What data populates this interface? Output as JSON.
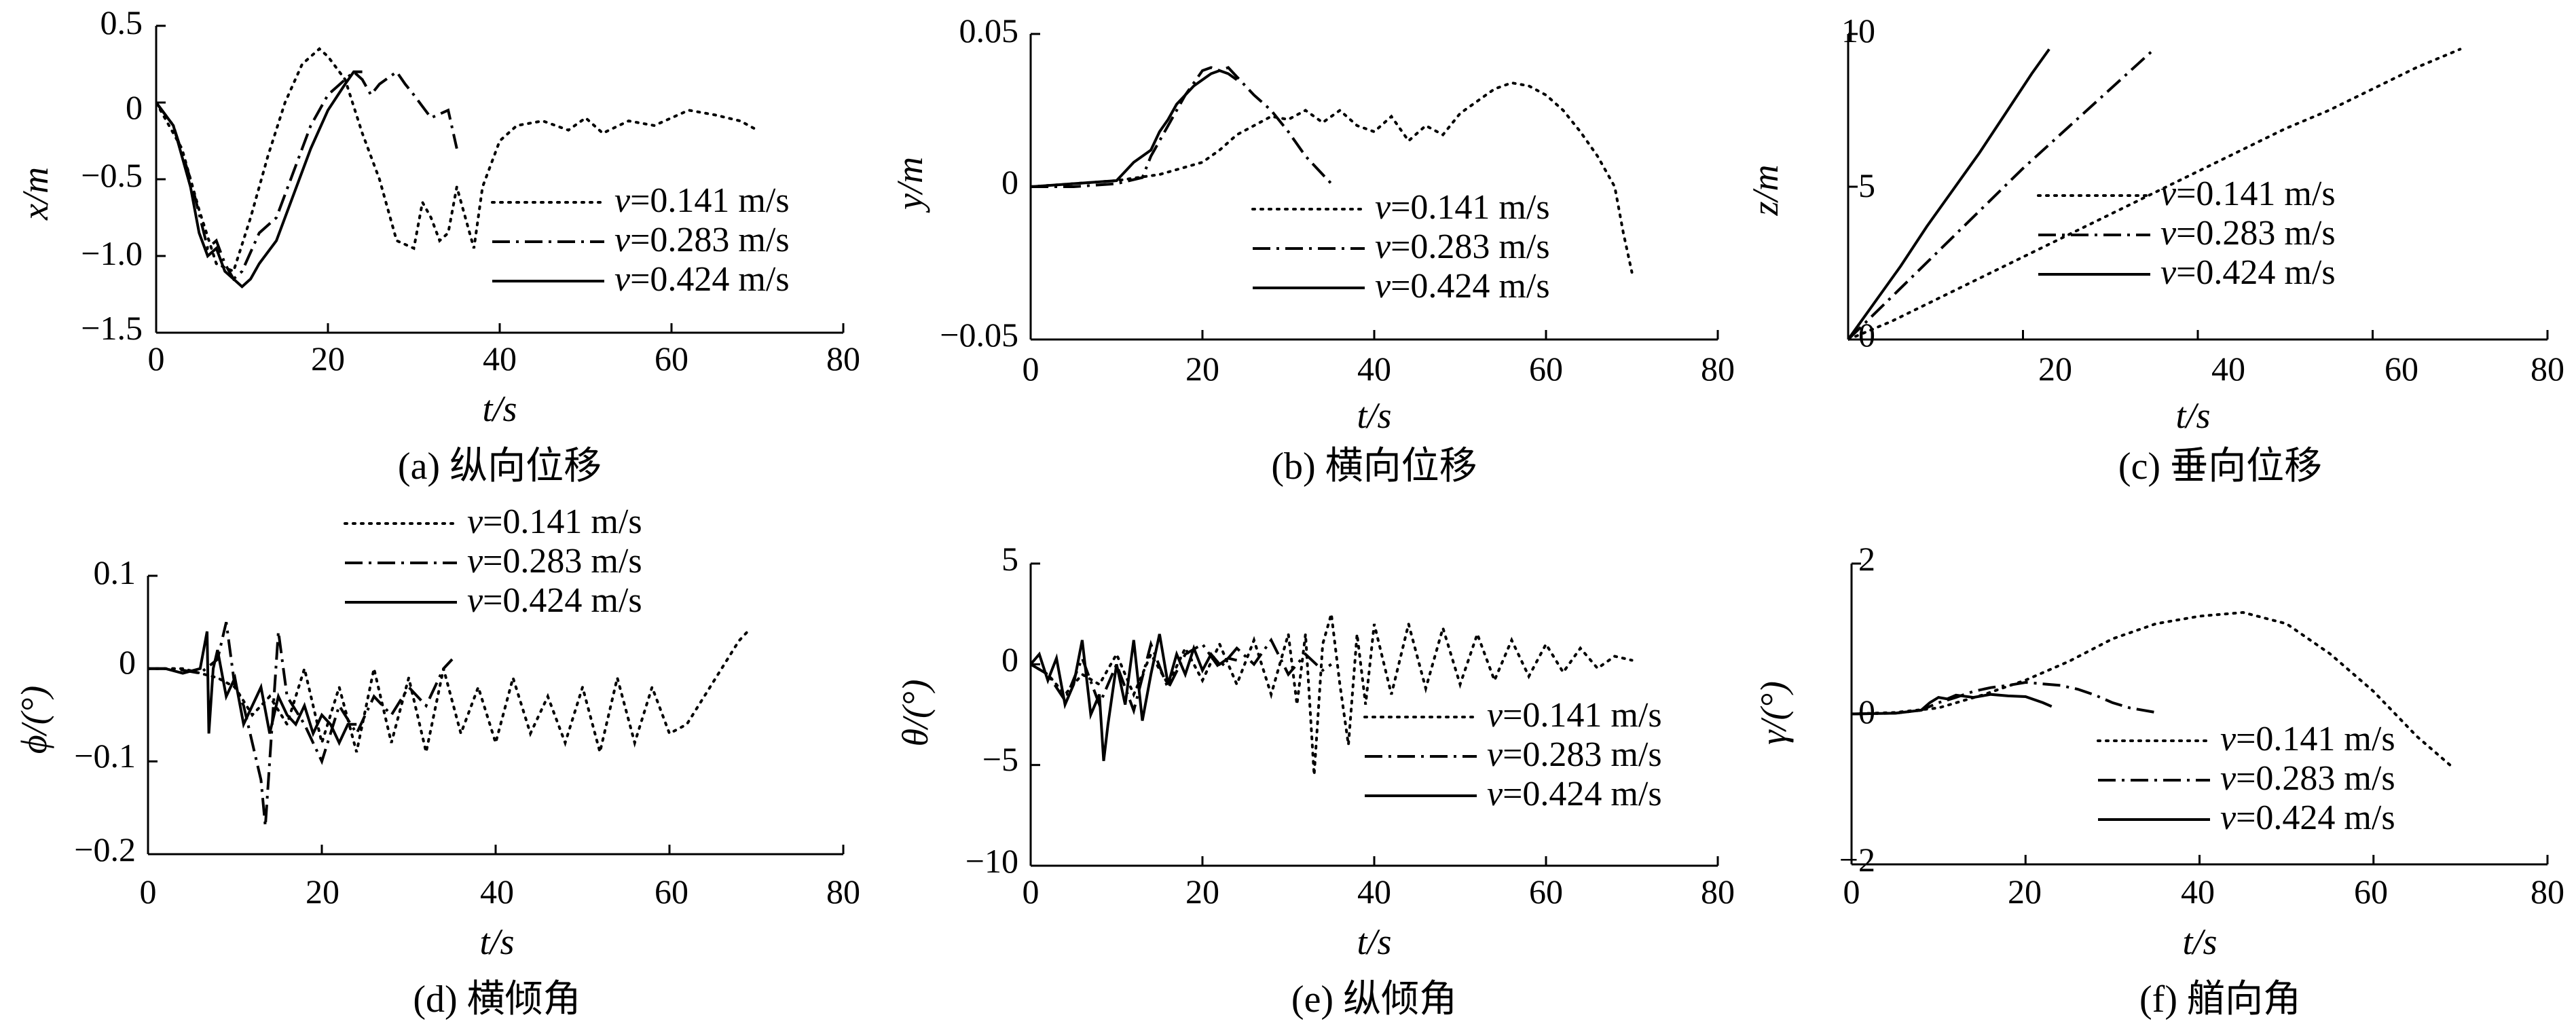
{
  "legend": [
    "v=0.141 m/s",
    "v=0.283 m/s",
    "v=0.424 m/s"
  ],
  "chart_data": [
    {
      "id": "a",
      "type": "line",
      "caption": "(a) 纵向位移",
      "xlabel": "t/s",
      "ylabel": "x/m",
      "xlim": [
        0,
        80
      ],
      "ylim": [
        -1.5,
        0.5
      ],
      "xticks": [
        0,
        20,
        40,
        60,
        80
      ],
      "xtick_labels": [
        "0",
        "20",
        "40",
        "60",
        "80"
      ],
      "yticks": [
        0.5,
        0,
        -0.5,
        -1.0,
        -1.5
      ],
      "ytick_labels": [
        "0.5",
        "0",
        "−0.5",
        "−1.0",
        "−1.5"
      ],
      "legend_position": "inside-lower-right",
      "series": [
        {
          "name": "v=0.141 m/s",
          "style": "dotted",
          "x": [
            0,
            3,
            5,
            7,
            9,
            11,
            13,
            15,
            17,
            19,
            20,
            22,
            24,
            26,
            28,
            30,
            31,
            32,
            33,
            34,
            35,
            36,
            37,
            38,
            40,
            42,
            45,
            48,
            50,
            52,
            55,
            58,
            60,
            62,
            65,
            68,
            70
          ],
          "y": [
            0,
            -0.3,
            -0.7,
            -1.05,
            -1.1,
            -0.75,
            -0.35,
            0,
            0.25,
            0.35,
            0.3,
            0.15,
            -0.2,
            -0.5,
            -0.9,
            -0.95,
            -0.65,
            -0.75,
            -0.9,
            -0.85,
            -0.55,
            -0.75,
            -0.95,
            -0.55,
            -0.25,
            -0.15,
            -0.12,
            -0.18,
            -0.1,
            -0.2,
            -0.12,
            -0.15,
            -0.1,
            -0.05,
            -0.08,
            -0.12,
            -0.18
          ]
        },
        {
          "name": "v=0.283 m/s",
          "style": "dashdot",
          "x": [
            0,
            2,
            4,
            6,
            7,
            8,
            9,
            10,
            12,
            14,
            16,
            18,
            20,
            22,
            23,
            24,
            25,
            26,
            28,
            29,
            30,
            32,
            34,
            35
          ],
          "y": [
            0,
            -0.15,
            -0.5,
            -0.95,
            -0.9,
            -1.05,
            -1.15,
            -1.1,
            -0.85,
            -0.75,
            -0.45,
            -0.15,
            0.05,
            0.15,
            0.2,
            0.15,
            0.05,
            0.12,
            0.2,
            0.12,
            0.05,
            -0.1,
            -0.05,
            -0.3
          ]
        },
        {
          "name": "v=0.424 m/s",
          "style": "solid",
          "x": [
            0,
            2,
            4,
            5,
            6,
            7,
            8,
            9,
            10,
            11,
            12,
            14,
            16,
            18,
            20,
            22,
            23,
            24
          ],
          "y": [
            0,
            -0.15,
            -0.55,
            -0.85,
            -1.0,
            -0.95,
            -1.1,
            -1.15,
            -1.2,
            -1.15,
            -1.05,
            -0.9,
            -0.6,
            -0.3,
            -0.05,
            0.12,
            0.2,
            0.2
          ]
        }
      ]
    },
    {
      "id": "b",
      "type": "line",
      "caption": "(b) 横向位移",
      "xlabel": "t/s",
      "ylabel": "y/m",
      "xlim": [
        0,
        80
      ],
      "ylim": [
        -0.05,
        0.05
      ],
      "xticks": [
        0,
        20,
        40,
        60,
        80
      ],
      "xtick_labels": [
        "0",
        "20",
        "40",
        "60",
        "80"
      ],
      "yticks": [
        0.05,
        0,
        -0.05
      ],
      "ytick_labels": [
        "0.05",
        "0",
        "−0.05"
      ],
      "legend_position": "inside-lower-right",
      "series": [
        {
          "name": "v=0.141 m/s",
          "style": "dotted",
          "x": [
            0,
            5,
            10,
            15,
            20,
            22,
            24,
            26,
            28,
            30,
            32,
            34,
            36,
            38,
            40,
            42,
            44,
            46,
            48,
            50,
            52,
            54,
            56,
            58,
            60,
            62,
            64,
            66,
            68,
            69,
            70
          ],
          "y": [
            0,
            0.001,
            0.002,
            0.004,
            0.008,
            0.012,
            0.017,
            0.02,
            0.023,
            0.022,
            0.025,
            0.021,
            0.025,
            0.02,
            0.018,
            0.023,
            0.015,
            0.02,
            0.017,
            0.024,
            0.028,
            0.032,
            0.034,
            0.033,
            0.03,
            0.025,
            0.018,
            0.01,
            0.0,
            -0.015,
            -0.028
          ]
        },
        {
          "name": "v=0.283 m/s",
          "style": "dashdot",
          "x": [
            0,
            5,
            10,
            13,
            14,
            16,
            18,
            20,
            21,
            22,
            23,
            24,
            26,
            28,
            30,
            32,
            34,
            35
          ],
          "y": [
            0,
            0,
            0.001,
            0.003,
            0.01,
            0.02,
            0.03,
            0.038,
            0.039,
            0.038,
            0.039,
            0.036,
            0.03,
            0.025,
            0.018,
            0.01,
            0.004,
            0.001
          ]
        },
        {
          "name": "v=0.424 m/s",
          "style": "solid",
          "x": [
            0,
            5,
            10,
            11,
            12,
            13,
            14,
            15,
            16,
            17,
            18,
            19,
            20,
            21,
            22,
            23,
            24
          ],
          "y": [
            0,
            0.001,
            0.002,
            0.005,
            0.008,
            0.01,
            0.012,
            0.018,
            0.022,
            0.027,
            0.03,
            0.033,
            0.035,
            0.037,
            0.038,
            0.037,
            0.035
          ]
        }
      ]
    },
    {
      "id": "c",
      "type": "line",
      "caption": "(c) 垂向位移",
      "xlabel": "t/s",
      "ylabel": "z/m",
      "xlim": [
        0,
        80
      ],
      "ylim": [
        0,
        10
      ],
      "xticks": [
        20,
        40,
        60,
        80
      ],
      "xtick_labels": [
        "20",
        "40",
        "60",
        "80"
      ],
      "yticks": [
        10,
        5,
        0
      ],
      "ytick_labels": [
        "10",
        "5",
        "0"
      ],
      "legend_position": "inside-lower-right",
      "series": [
        {
          "name": "v=0.141 m/s",
          "style": "dotted",
          "x": [
            0,
            5,
            10,
            15,
            20,
            25,
            30,
            35,
            40,
            45,
            50,
            55,
            60,
            65,
            70
          ],
          "y": [
            0,
            0.6,
            1.3,
            2.0,
            2.7,
            3.4,
            4.1,
            4.8,
            5.5,
            6.2,
            6.9,
            7.5,
            8.2,
            8.9,
            9.5
          ]
        },
        {
          "name": "v=0.283 m/s",
          "style": "dashdot",
          "x": [
            0,
            5,
            10,
            15,
            20,
            25,
            30,
            35
          ],
          "y": [
            0,
            1.4,
            2.8,
            4.2,
            5.6,
            6.9,
            8.2,
            9.5
          ]
        },
        {
          "name": "v=0.424 m/s",
          "style": "solid",
          "x": [
            0,
            3,
            6,
            9,
            12,
            15,
            18,
            21,
            23
          ],
          "y": [
            0,
            1.2,
            2.4,
            3.7,
            4.9,
            6.1,
            7.4,
            8.7,
            9.5
          ]
        }
      ]
    },
    {
      "id": "d",
      "type": "line",
      "caption": "(d) 横倾角",
      "xlabel": "t/s",
      "ylabel": "ϕ/(°)",
      "xlim": [
        0,
        80
      ],
      "ylim": [
        -0.2,
        0.1
      ],
      "xticks": [
        0,
        20,
        40,
        60,
        80
      ],
      "xtick_labels": [
        "0",
        "20",
        "40",
        "60",
        "80"
      ],
      "yticks": [
        0.1,
        0,
        -0.1,
        -0.2
      ],
      "ytick_labels": [
        "0.1",
        "0",
        "−0.1",
        "−0.2"
      ],
      "legend_position": "top-center",
      "series": [
        {
          "name": "v=0.141 m/s",
          "style": "dotted",
          "x": [
            0,
            4,
            8,
            10,
            12,
            14,
            16,
            18,
            20,
            22,
            24,
            26,
            28,
            30,
            32,
            34,
            36,
            38,
            40,
            42,
            44,
            46,
            48,
            50,
            52,
            54,
            56,
            58,
            60,
            62,
            64,
            66,
            68,
            69
          ],
          "y": [
            0,
            0,
            -0.01,
            -0.02,
            -0.05,
            -0.03,
            -0.06,
            0.0,
            -0.08,
            -0.02,
            -0.09,
            0.0,
            -0.08,
            -0.01,
            -0.09,
            0.0,
            -0.07,
            -0.02,
            -0.08,
            -0.01,
            -0.07,
            -0.03,
            -0.08,
            -0.02,
            -0.09,
            -0.01,
            -0.08,
            -0.02,
            -0.07,
            -0.06,
            -0.03,
            0.0,
            0.03,
            0.04
          ]
        },
        {
          "name": "v=0.283 m/s",
          "style": "dashdot",
          "x": [
            0,
            3,
            6,
            8,
            9,
            10,
            11,
            12,
            13,
            13.5,
            14,
            15,
            16,
            18,
            20,
            22,
            24,
            26,
            28,
            30,
            32,
            34,
            35
          ],
          "y": [
            0,
            0,
            -0.005,
            0.01,
            0.05,
            -0.02,
            -0.04,
            -0.08,
            -0.12,
            -0.17,
            -0.1,
            0.04,
            -0.03,
            -0.06,
            -0.1,
            -0.04,
            -0.07,
            -0.03,
            -0.05,
            -0.02,
            -0.04,
            0.0,
            0.01
          ]
        },
        {
          "name": "v=0.424 m/s",
          "style": "solid",
          "x": [
            0,
            2,
            4,
            6,
            6.8,
            7,
            7.5,
            8,
            9,
            10,
            11,
            12,
            13,
            14,
            15,
            16,
            17,
            18,
            19,
            20,
            21,
            22,
            23,
            24
          ],
          "y": [
            0,
            0.0,
            -0.005,
            0.0,
            0.04,
            -0.07,
            0.0,
            0.02,
            -0.03,
            -0.01,
            -0.06,
            -0.04,
            -0.02,
            -0.07,
            -0.03,
            -0.05,
            -0.06,
            -0.04,
            -0.07,
            -0.05,
            -0.06,
            -0.08,
            -0.06,
            -0.06
          ]
        }
      ]
    },
    {
      "id": "e",
      "type": "line",
      "caption": "(e) 纵倾角",
      "xlabel": "t/s",
      "ylabel": "θ/(°)",
      "xlim": [
        0,
        80
      ],
      "ylim": [
        -10,
        5
      ],
      "xticks": [
        0,
        20,
        40,
        60,
        80
      ],
      "xtick_labels": [
        "0",
        "20",
        "40",
        "60",
        "80"
      ],
      "yticks": [
        5,
        0,
        -5,
        -10
      ],
      "ytick_labels": [
        "5",
        "0",
        "−5",
        "−10"
      ],
      "legend_position": "inside-lower-right",
      "series": [
        {
          "name": "v=0.141 m/s",
          "style": "dotted",
          "x": [
            0,
            2,
            4,
            6,
            8,
            10,
            12,
            14,
            16,
            18,
            20,
            22,
            24,
            26,
            28,
            30,
            31,
            32,
            33,
            34,
            35,
            36,
            37,
            38,
            39,
            40,
            42,
            44,
            46,
            48,
            50,
            52,
            54,
            56,
            58,
            60,
            62,
            64,
            66,
            68,
            70
          ],
          "y": [
            0,
            -0.5,
            -1.5,
            -0.5,
            -1.0,
            0.5,
            -1.5,
            0.5,
            -1.0,
            0.8,
            -0.8,
            1.0,
            -1.0,
            1.2,
            -1.5,
            1.5,
            -2.0,
            1.5,
            -5.5,
            1.0,
            2.5,
            -1.0,
            -4.0,
            1.5,
            -2.0,
            2.0,
            -1.5,
            2.0,
            -1.2,
            1.8,
            -1.0,
            1.5,
            -0.8,
            1.2,
            -0.6,
            1.0,
            -0.4,
            0.8,
            -0.2,
            0.4,
            0.2
          ]
        },
        {
          "name": "v=0.283 m/s",
          "style": "dashdot",
          "x": [
            0,
            2,
            4,
            6,
            8,
            10,
            12,
            14,
            16,
            18,
            20,
            22,
            24,
            26,
            28,
            30,
            32,
            34,
            35
          ],
          "y": [
            0,
            -0.5,
            -1.8,
            0.3,
            -2.0,
            0.0,
            -2.3,
            1.0,
            -1.2,
            0.5,
            1.0,
            -0.2,
            0.8,
            0.0,
            1.2,
            -0.5,
            0.5,
            -0.3,
            0.0
          ]
        },
        {
          "name": "v=0.424 m/s",
          "style": "solid",
          "x": [
            0,
            1,
            2,
            3,
            4,
            5,
            6,
            7,
            8,
            8.5,
            9,
            10,
            11,
            12,
            13,
            14,
            15,
            16,
            17,
            18,
            19,
            20,
            21,
            22,
            23,
            24
          ],
          "y": [
            0,
            0.5,
            -0.8,
            0.3,
            -2.0,
            -1.0,
            1.2,
            -2.5,
            -1.5,
            -4.8,
            -3.0,
            0.0,
            -2.0,
            1.2,
            -2.8,
            -0.5,
            1.5,
            -1.0,
            0.5,
            -0.5,
            0.8,
            -0.3,
            0.5,
            0.0,
            0.3,
            0.2
          ]
        }
      ]
    },
    {
      "id": "f",
      "type": "line",
      "caption": "(f) 艏向角",
      "xlabel": "t/s",
      "ylabel": "γ/(°)",
      "xlim": [
        0,
        80
      ],
      "ylim": [
        -2,
        2
      ],
      "xticks": [
        0,
        20,
        40,
        60,
        80
      ],
      "xtick_labels": [
        "0",
        "20",
        "40",
        "60",
        "80"
      ],
      "yticks": [
        2,
        0,
        -2
      ],
      "ytick_labels": [
        "2",
        "0",
        "−2"
      ],
      "legend_position": "inside-lower-right",
      "series": [
        {
          "name": "v=0.141 m/s",
          "style": "dotted",
          "x": [
            0,
            5,
            10,
            15,
            20,
            25,
            30,
            35,
            40,
            45,
            50,
            55,
            60,
            65,
            69
          ],
          "y": [
            0,
            0.02,
            0.08,
            0.25,
            0.45,
            0.7,
            1.0,
            1.2,
            1.3,
            1.35,
            1.2,
            0.8,
            0.3,
            -0.3,
            -0.7
          ]
        },
        {
          "name": "v=0.283 m/s",
          "style": "dashdot",
          "x": [
            0,
            5,
            8,
            10,
            12,
            14,
            16,
            18,
            20,
            22,
            24,
            26,
            28,
            30,
            32,
            35
          ],
          "y": [
            0,
            0.01,
            0.05,
            0.15,
            0.22,
            0.3,
            0.35,
            0.38,
            0.42,
            0.4,
            0.38,
            0.33,
            0.25,
            0.15,
            0.08,
            0.02
          ]
        },
        {
          "name": "v=0.424 m/s",
          "style": "solid",
          "x": [
            0,
            5,
            8,
            9,
            10,
            11,
            12,
            14,
            16,
            18,
            20,
            22,
            23
          ],
          "y": [
            0,
            0.01,
            0.05,
            0.15,
            0.22,
            0.2,
            0.25,
            0.22,
            0.26,
            0.24,
            0.23,
            0.15,
            0.1
          ]
        }
      ]
    }
  ]
}
